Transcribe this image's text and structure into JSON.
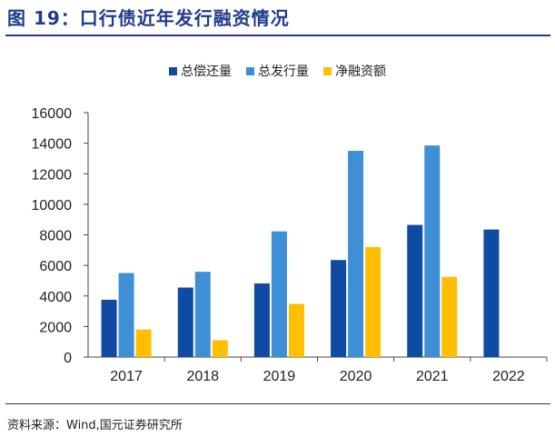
{
  "figure": {
    "title": "图 19：口行债近年发行融资情况",
    "source": "资料来源：Wind,国元证券研究所"
  },
  "colors": {
    "title": "#1f3b8c",
    "series": [
      "#0f4ba3",
      "#3f8fd6",
      "#ffbf00"
    ],
    "axis": "#444444"
  },
  "chart_data": {
    "type": "bar",
    "categories": [
      "2017",
      "2018",
      "2019",
      "2020",
      "2021",
      "2022"
    ],
    "series": [
      {
        "name": "总偿还量",
        "values": [
          3750,
          4550,
          4820,
          6350,
          8650,
          8350
        ]
      },
      {
        "name": "总发行量",
        "values": [
          5500,
          5580,
          8230,
          13500,
          13850,
          null
        ]
      },
      {
        "name": "净融资额",
        "values": [
          1800,
          1100,
          3480,
          7200,
          5250,
          null
        ]
      }
    ],
    "ylim": [
      0,
      16000
    ],
    "yticks": [
      0,
      2000,
      4000,
      6000,
      8000,
      10000,
      12000,
      14000,
      16000
    ],
    "grid": false,
    "legend_position": "top-center"
  }
}
